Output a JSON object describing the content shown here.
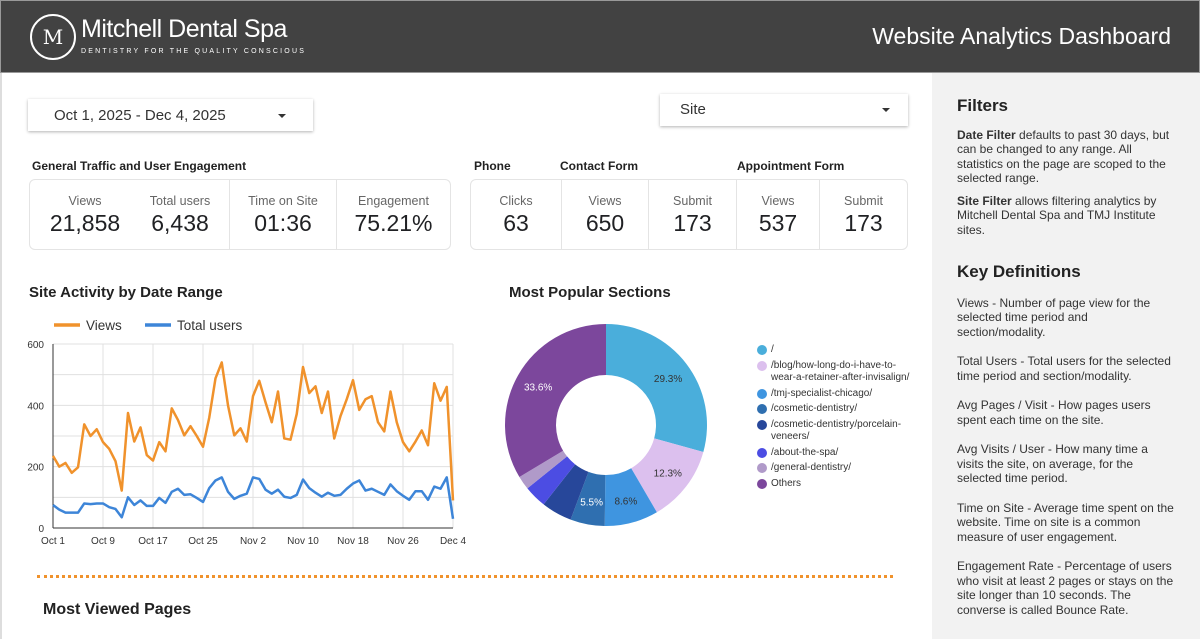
{
  "header": {
    "brand": "Mitchell Dental Spa",
    "tagline": "DENTISTRY FOR THE QUALITY CONSCIOUS",
    "logo_letter": "M",
    "title": "Website Analytics Dashboard"
  },
  "filters": {
    "date_range": "Oct 1, 2025 - Dec 4, 2025",
    "site": "Site"
  },
  "general": {
    "title": "General Traffic and User Engagement",
    "kpis": [
      {
        "label": "Views",
        "value": "21,858"
      },
      {
        "label": "Total users",
        "value": "6,438"
      },
      {
        "label": "Time on Site",
        "value": "01:36"
      },
      {
        "label": "Engagement",
        "value": "75.21%"
      }
    ]
  },
  "conversions": {
    "phone_title": "Phone",
    "contact_title": "Contact Form",
    "appointment_title": "Appointment Form",
    "kpis": [
      {
        "label": "Clicks",
        "value": "63"
      },
      {
        "label": "Views",
        "value": "650"
      },
      {
        "label": "Submit",
        "value": "173"
      },
      {
        "label": "Views",
        "value": "537"
      },
      {
        "label": "Submit",
        "value": "173"
      }
    ]
  },
  "chart_data": [
    {
      "type": "line",
      "title": "Site Activity by Date Range",
      "ylim": [
        0,
        600
      ],
      "yticks": [
        "0",
        "200",
        "400",
        "600"
      ],
      "xticks": [
        "Oct 1",
        "Oct 9",
        "Oct 17",
        "Oct 25",
        "Nov 2",
        "Nov 10",
        "Nov 18",
        "Nov 26",
        "Dec 4"
      ],
      "x_start": "Oct 1",
      "x_end": "Dec 4",
      "grid": true,
      "legend": "top-left",
      "series": [
        {
          "name": "Views",
          "color": "#f0922c",
          "values": [
            235,
            200,
            212,
            180,
            198,
            338,
            300,
            322,
            280,
            258,
            218,
            122,
            375,
            282,
            328,
            238,
            220,
            280,
            250,
            390,
            352,
            302,
            332,
            300,
            265,
            360,
            488,
            540,
            400,
            302,
            325,
            282,
            430,
            480,
            410,
            345,
            445,
            292,
            288,
            372,
            525,
            440,
            462,
            375,
            445,
            292,
            365,
            420,
            482,
            385,
            420,
            430,
            345,
            315,
            445,
            345,
            280,
            250,
            282,
            318,
            270,
            472,
            415,
            460,
            90
          ]
        },
        {
          "name": "Total users",
          "color": "#3d85d8",
          "values": [
            75,
            60,
            50,
            50,
            50,
            80,
            78,
            80,
            80,
            68,
            62,
            35,
            100,
            75,
            90,
            72,
            72,
            98,
            82,
            118,
            128,
            108,
            110,
            98,
            85,
            130,
            155,
            165,
            118,
            95,
            105,
            112,
            165,
            160,
            125,
            112,
            125,
            102,
            98,
            108,
            158,
            130,
            115,
            102,
            115,
            105,
            108,
            128,
            145,
            155,
            122,
            128,
            118,
            108,
            142,
            120,
            105,
            92,
            120,
            120,
            92,
            135,
            128,
            165,
            30
          ]
        }
      ]
    },
    {
      "type": "pie",
      "title": "Most Popular Sections",
      "donut": true,
      "legend": "right",
      "slices": [
        {
          "label": "/",
          "value": 29.3,
          "color": "#4aaedb",
          "text": "29.3%"
        },
        {
          "label": "/blog/how-long-do-i-have-to-wear-a-retainer-after-invisalign/",
          "value": 12.3,
          "color": "#dcc0ee",
          "text": "12.3%"
        },
        {
          "label": "/tmj-specialist-chicago/",
          "value": 8.6,
          "color": "#3f95e0",
          "text": "8.6%"
        },
        {
          "label": "/cosmetic-dentistry/",
          "value": 5.5,
          "color": "#2f6fb0",
          "text": "5.5%"
        },
        {
          "label": "/cosmetic-dentistry/porcelain-veneers/",
          "value": 4.9,
          "color": "#27479a",
          "text": ""
        },
        {
          "label": "/about-the-spa/",
          "value": 3.6,
          "color": "#4c4de3",
          "text": ""
        },
        {
          "label": "/general-dentistry/",
          "value": 2.2,
          "color": "#b09ac9",
          "text": ""
        },
        {
          "label": "Others",
          "value": 33.6,
          "color": "#7c479c",
          "text": "33.6%"
        }
      ]
    }
  ],
  "most_viewed": {
    "title": "Most Viewed Pages"
  },
  "sidebar": {
    "filters_title": "Filters",
    "date_filter_bold": "Date Filter",
    "date_filter_text": " defaults to past 30 days, but can be changed to any range. All statistics on the page are scoped to the selected range.",
    "site_filter_bold": "Site Filter",
    "site_filter_text": " allows filtering analytics by Mitchell Dental Spa and TMJ Institute sites.",
    "definitions_title": "Key Definitions",
    "definitions": [
      "Views - Number of page view for the selected time period and section/modality.",
      "Total Users - Total users for the selected  time period and section/modality.",
      "Avg Pages / Visit - How pages users spent each time on the site.",
      "Avg Visits / User - How many time a visits the site, on average, for the selected time period.",
      "Time on Site - Average time spent on the website. Time on site is a common measure of user engagement.",
      "Engagement Rate - Percentage of users who visit at least 2 pages or stays on the site longer than 10 seconds. The converse is called Bounce Rate."
    ]
  }
}
